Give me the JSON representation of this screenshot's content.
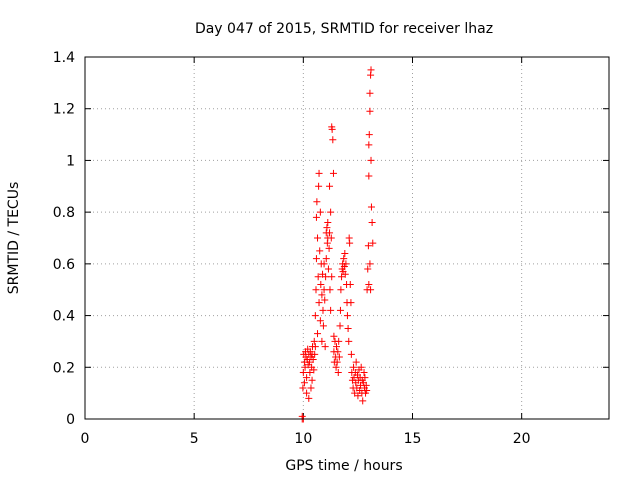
{
  "chart_data": {
    "type": "scatter",
    "title": "Day 047 of 2015, SRMTID for receiver lhaz",
    "xlabel": "GPS time / hours",
    "ylabel": "SRMTID / TECUs",
    "xlim": [
      0,
      24
    ],
    "ylim": [
      0,
      1.4
    ],
    "xticks": [
      0,
      5,
      10,
      15,
      20
    ],
    "xtick_labels": [
      "0",
      "5",
      "10",
      "15",
      "20"
    ],
    "yticks": [
      0,
      0.2,
      0.4,
      0.6,
      0.8,
      1.0,
      1.2,
      1.4
    ],
    "ytick_labels": [
      "0",
      "0.2",
      "0.4",
      "0.6",
      "0.8",
      "1",
      "1.2",
      "1.4"
    ],
    "grid": true,
    "marker": "+",
    "color": "#ff0000",
    "series": [
      {
        "name": "SRMTID",
        "points": [
          [
            9.95,
            0.0
          ],
          [
            9.95,
            0.01
          ],
          [
            10.0,
            0.0
          ],
          [
            9.98,
            0.12
          ],
          [
            10.0,
            0.18
          ],
          [
            10.02,
            0.25
          ],
          [
            10.05,
            0.22
          ],
          [
            10.05,
            0.14
          ],
          [
            10.08,
            0.2
          ],
          [
            10.1,
            0.26
          ],
          [
            10.12,
            0.24
          ],
          [
            10.15,
            0.1
          ],
          [
            10.15,
            0.16
          ],
          [
            10.18,
            0.23
          ],
          [
            10.2,
            0.27
          ],
          [
            10.22,
            0.21
          ],
          [
            10.25,
            0.08
          ],
          [
            10.25,
            0.25
          ],
          [
            10.28,
            0.22
          ],
          [
            10.3,
            0.18
          ],
          [
            10.32,
            0.26
          ],
          [
            10.35,
            0.12
          ],
          [
            10.35,
            0.24
          ],
          [
            10.38,
            0.2
          ],
          [
            10.4,
            0.25
          ],
          [
            10.4,
            0.15
          ],
          [
            10.42,
            0.28
          ],
          [
            10.45,
            0.23
          ],
          [
            10.48,
            0.19
          ],
          [
            10.5,
            0.3
          ],
          [
            10.52,
            0.25
          ],
          [
            10.55,
            0.28
          ],
          [
            10.55,
            0.4
          ],
          [
            10.58,
            0.5
          ],
          [
            10.6,
            0.62
          ],
          [
            10.6,
            0.78
          ],
          [
            10.62,
            0.84
          ],
          [
            10.65,
            0.7
          ],
          [
            10.65,
            0.33
          ],
          [
            10.68,
            0.55
          ],
          [
            10.7,
            0.9
          ],
          [
            10.72,
            0.95
          ],
          [
            10.72,
            0.45
          ],
          [
            10.75,
            0.65
          ],
          [
            10.78,
            0.8
          ],
          [
            10.78,
            0.38
          ],
          [
            10.8,
            0.52
          ],
          [
            10.82,
            0.6
          ],
          [
            10.85,
            0.3
          ],
          [
            10.85,
            0.48
          ],
          [
            10.88,
            0.56
          ],
          [
            10.9,
            0.42
          ],
          [
            10.92,
            0.36
          ],
          [
            10.95,
            0.5
          ],
          [
            10.95,
            0.6
          ],
          [
            10.98,
            0.46
          ],
          [
            11.0,
            0.28
          ],
          [
            11.02,
            0.55
          ],
          [
            11.05,
            0.72
          ],
          [
            11.05,
            0.62
          ],
          [
            11.08,
            0.74
          ],
          [
            11.1,
            0.68
          ],
          [
            11.12,
            0.7
          ],
          [
            11.12,
            0.76
          ],
          [
            11.15,
            0.58
          ],
          [
            11.18,
            0.66
          ],
          [
            11.2,
            0.72
          ],
          [
            11.2,
            0.9
          ],
          [
            11.22,
            0.5
          ],
          [
            11.25,
            0.42
          ],
          [
            11.25,
            0.8
          ],
          [
            11.28,
            0.7
          ],
          [
            11.3,
            0.55
          ],
          [
            11.3,
            1.13
          ],
          [
            11.32,
            1.12
          ],
          [
            11.35,
            1.08
          ],
          [
            11.38,
            0.95
          ],
          [
            11.4,
            0.32
          ],
          [
            11.4,
            0.26
          ],
          [
            11.42,
            0.22
          ],
          [
            11.45,
            0.3
          ],
          [
            11.48,
            0.24
          ],
          [
            11.5,
            0.2
          ],
          [
            11.52,
            0.28
          ],
          [
            11.55,
            0.22
          ],
          [
            11.58,
            0.26
          ],
          [
            11.6,
            0.18
          ],
          [
            11.62,
            0.3
          ],
          [
            11.65,
            0.24
          ],
          [
            11.68,
            0.36
          ],
          [
            11.7,
            0.42
          ],
          [
            11.72,
            0.5
          ],
          [
            11.75,
            0.55
          ],
          [
            11.78,
            0.58
          ],
          [
            11.8,
            0.6
          ],
          [
            11.82,
            0.57
          ],
          [
            11.85,
            0.62
          ],
          [
            11.88,
            0.59
          ],
          [
            11.9,
            0.64
          ],
          [
            11.92,
            0.56
          ],
          [
            11.95,
            0.6
          ],
          [
            11.98,
            0.52
          ],
          [
            12.0,
            0.45
          ],
          [
            12.02,
            0.4
          ],
          [
            12.05,
            0.35
          ],
          [
            12.08,
            0.3
          ],
          [
            12.1,
            0.7
          ],
          [
            12.12,
            0.68
          ],
          [
            12.15,
            0.52
          ],
          [
            12.18,
            0.45
          ],
          [
            12.2,
            0.25
          ],
          [
            12.22,
            0.18
          ],
          [
            12.25,
            0.15
          ],
          [
            12.28,
            0.12
          ],
          [
            12.3,
            0.2
          ],
          [
            12.32,
            0.16
          ],
          [
            12.35,
            0.1
          ],
          [
            12.38,
            0.18
          ],
          [
            12.4,
            0.14
          ],
          [
            12.42,
            0.22
          ],
          [
            12.45,
            0.12
          ],
          [
            12.48,
            0.17
          ],
          [
            12.5,
            0.09
          ],
          [
            12.52,
            0.15
          ],
          [
            12.55,
            0.19
          ],
          [
            12.58,
            0.11
          ],
          [
            12.6,
            0.16
          ],
          [
            12.62,
            0.13
          ],
          [
            12.65,
            0.2
          ],
          [
            12.68,
            0.1
          ],
          [
            12.7,
            0.15
          ],
          [
            12.72,
            0.07
          ],
          [
            12.75,
            0.14
          ],
          [
            12.78,
            0.18
          ],
          [
            12.8,
            0.12
          ],
          [
            12.82,
            0.16
          ],
          [
            12.85,
            0.1
          ],
          [
            12.88,
            0.13
          ],
          [
            12.9,
            0.11
          ],
          [
            12.92,
            0.5
          ],
          [
            12.95,
            0.58
          ],
          [
            12.98,
            0.67
          ],
          [
            13.0,
            0.94
          ],
          [
            13.0,
            1.06
          ],
          [
            13.02,
            1.1
          ],
          [
            13.05,
            1.19
          ],
          [
            13.05,
            1.26
          ],
          [
            13.08,
            1.33
          ],
          [
            13.1,
            1.35
          ],
          [
            13.1,
            1.0
          ],
          [
            13.12,
            0.82
          ],
          [
            13.15,
            0.76
          ],
          [
            13.18,
            0.68
          ],
          [
            13.0,
            0.52
          ],
          [
            13.05,
            0.6
          ],
          [
            13.08,
            0.5
          ]
        ]
      }
    ]
  }
}
